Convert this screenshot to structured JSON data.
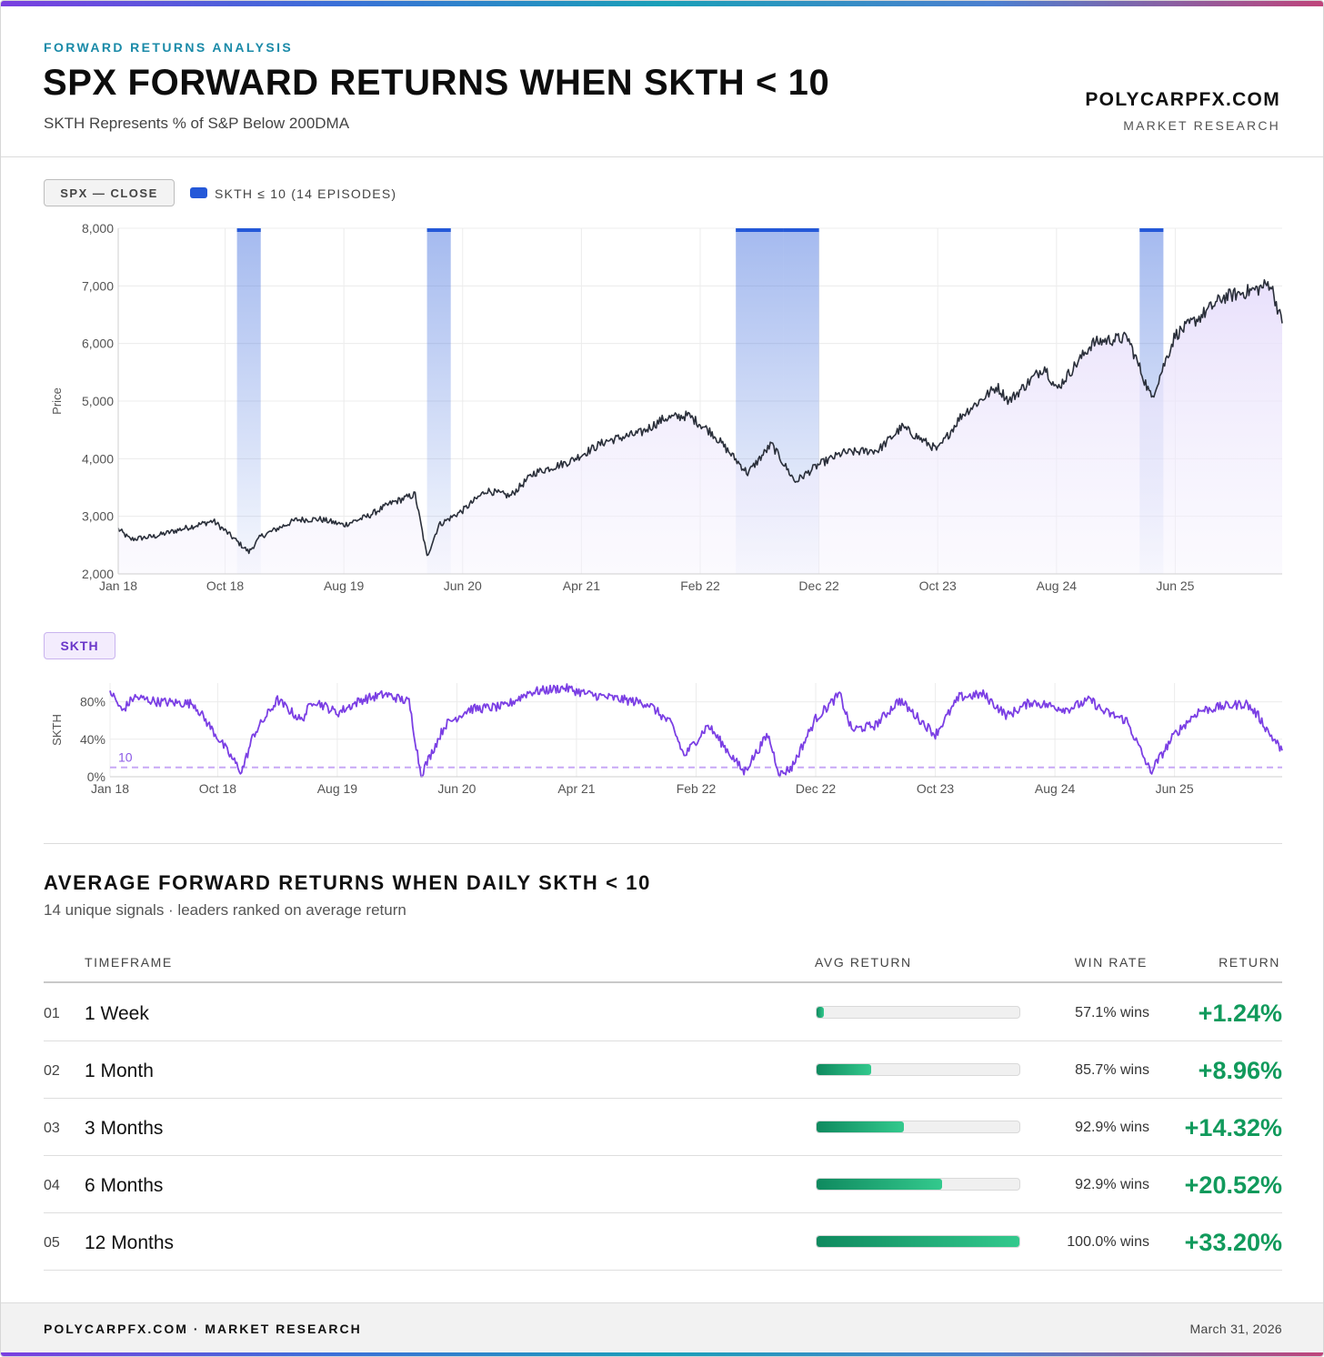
{
  "header": {
    "kicker": "FORWARD RETURNS ANALYSIS",
    "title": "SPX FORWARD RETURNS WHEN SKTH < 10",
    "subtitle": "SKTH Represents % of S&P Below 200DMA",
    "brand": "POLYCARPFX.COM",
    "brand_sub": "MARKET RESEARCH"
  },
  "price_panel": {
    "pill_label": "SPX — CLOSE",
    "legend_label": "SKTH ≤ 10 (14 EPISODES)"
  },
  "skth_panel": {
    "pill_label": "SKTH"
  },
  "colors": {
    "price_line": "#2a2f3a",
    "price_fill": "#ece6fb",
    "episode_band": "#2458d8",
    "skth_line": "#7b3fe4",
    "threshold_line": "#c8a8f5",
    "return_green": "#119a5c"
  },
  "chart_data": [
    {
      "type": "line",
      "ylabel": "Price",
      "ylim": [
        2000,
        8000
      ],
      "yticks": [
        "2,000",
        "3,000",
        "4,000",
        "5,000",
        "6,000",
        "7,000",
        "8,000"
      ],
      "xticks": [
        "Jan 18",
        "Oct 18",
        "Aug 19",
        "Jun 20",
        "Apr 21",
        "Feb 22",
        "Dec 22",
        "Oct 23",
        "Aug 24",
        "Jun 25"
      ],
      "x_range": [
        "2018-01",
        "2026-03"
      ],
      "grid": true,
      "series": [
        {
          "name": "SPX — CLOSE",
          "x": [
            "2018-01",
            "2018-02",
            "2018-04",
            "2018-06",
            "2018-09",
            "2018-10",
            "2018-12",
            "2019-01",
            "2019-04",
            "2019-06",
            "2019-08",
            "2019-10",
            "2019-12",
            "2020-02",
            "2020-03",
            "2020-04",
            "2020-06",
            "2020-08",
            "2020-10",
            "2020-12",
            "2021-03",
            "2021-06",
            "2021-09",
            "2021-11",
            "2022-01",
            "2022-03",
            "2022-06",
            "2022-08",
            "2022-10",
            "2022-12",
            "2023-02",
            "2023-05",
            "2023-07",
            "2023-10",
            "2023-12",
            "2024-03",
            "2024-04",
            "2024-07",
            "2024-08",
            "2024-11",
            "2024-12",
            "2025-02",
            "2025-04",
            "2025-06",
            "2025-08",
            "2025-10",
            "2026-01",
            "2026-02",
            "2026-03"
          ],
          "values": [
            2780,
            2600,
            2650,
            2760,
            2920,
            2750,
            2380,
            2650,
            2940,
            2950,
            2850,
            3000,
            3230,
            3380,
            2300,
            2850,
            3100,
            3450,
            3350,
            3750,
            3950,
            4300,
            4450,
            4700,
            4750,
            4450,
            3750,
            4250,
            3600,
            3900,
            4100,
            4150,
            4550,
            4150,
            4750,
            5250,
            5000,
            5600,
            5200,
            6000,
            6050,
            6100,
            5050,
            6150,
            6450,
            6800,
            6950,
            7050,
            6350
          ]
        }
      ],
      "episodes": [
        {
          "start": "2018-11",
          "end": "2019-01"
        },
        {
          "start": "2020-03",
          "end": "2020-05"
        },
        {
          "start": "2022-05",
          "end": "2022-09"
        },
        {
          "start": "2022-09",
          "end": "2022-12"
        },
        {
          "start": "2025-03",
          "end": "2025-05"
        }
      ]
    },
    {
      "type": "line",
      "ylabel": "SKTH",
      "ylim": [
        0,
        100
      ],
      "yticks": [
        "0%",
        "40%",
        "80%"
      ],
      "threshold": 10,
      "threshold_label": "10",
      "xticks": [
        "Jan 18",
        "Oct 18",
        "Aug 19",
        "Jun 20",
        "Apr 21",
        "Feb 22",
        "Dec 22",
        "Oct 23",
        "Aug 24",
        "Jun 25"
      ],
      "x_range": [
        "2018-01",
        "2026-03"
      ],
      "grid": true,
      "series": [
        {
          "name": "SKTH",
          "x": [
            "2018-01",
            "2018-02",
            "2018-03",
            "2018-05",
            "2018-08",
            "2018-10",
            "2018-12",
            "2019-01",
            "2019-03",
            "2019-05",
            "2019-06",
            "2019-08",
            "2019-10",
            "2019-12",
            "2020-02",
            "2020-03",
            "2020-05",
            "2020-07",
            "2020-10",
            "2020-12",
            "2021-03",
            "2021-05",
            "2021-08",
            "2021-10",
            "2021-12",
            "2022-01",
            "2022-03",
            "2022-06",
            "2022-08",
            "2022-09",
            "2022-10",
            "2022-12",
            "2023-02",
            "2023-03",
            "2023-05",
            "2023-07",
            "2023-10",
            "2023-12",
            "2024-02",
            "2024-04",
            "2024-06",
            "2024-09",
            "2024-11",
            "2024-12",
            "2025-02",
            "2025-04",
            "2025-06",
            "2025-08",
            "2025-10",
            "2025-12",
            "2026-01",
            "2026-02",
            "2026-03"
          ],
          "values": [
            92,
            70,
            85,
            80,
            78,
            42,
            5,
            45,
            82,
            60,
            82,
            68,
            82,
            88,
            80,
            2,
            55,
            72,
            75,
            90,
            95,
            88,
            82,
            78,
            55,
            22,
            55,
            5,
            45,
            2,
            10,
            62,
            88,
            50,
            55,
            82,
            45,
            85,
            88,
            65,
            80,
            72,
            82,
            70,
            60,
            5,
            45,
            70,
            75,
            78,
            65,
            45,
            28
          ]
        }
      ]
    }
  ],
  "table": {
    "title": "AVERAGE FORWARD RETURNS WHEN DAILY SKTH < 10",
    "subtitle": "14 unique signals · leaders ranked on average return",
    "headers": {
      "timeframe": "TIMEFRAME",
      "avg_return": "AVG RETURN",
      "win_rate": "WIN RATE",
      "return": "RETURN"
    },
    "rows": [
      {
        "num": "01",
        "timeframe": "1 Week",
        "bar_fraction": 0.037,
        "win_rate": "57.1% wins",
        "return": "+1.24%"
      },
      {
        "num": "02",
        "timeframe": "1 Month",
        "bar_fraction": 0.27,
        "win_rate": "85.7% wins",
        "return": "+8.96%"
      },
      {
        "num": "03",
        "timeframe": "3 Months",
        "bar_fraction": 0.431,
        "win_rate": "92.9% wins",
        "return": "+14.32%"
      },
      {
        "num": "04",
        "timeframe": "6 Months",
        "bar_fraction": 0.618,
        "win_rate": "92.9% wins",
        "return": "+20.52%"
      },
      {
        "num": "05",
        "timeframe": "12 Months",
        "bar_fraction": 1.0,
        "win_rate": "100.0% wins",
        "return": "+33.20%"
      }
    ]
  },
  "footer": {
    "left": "POLYCARPFX.COM · MARKET RESEARCH",
    "right": "March 31, 2026"
  }
}
